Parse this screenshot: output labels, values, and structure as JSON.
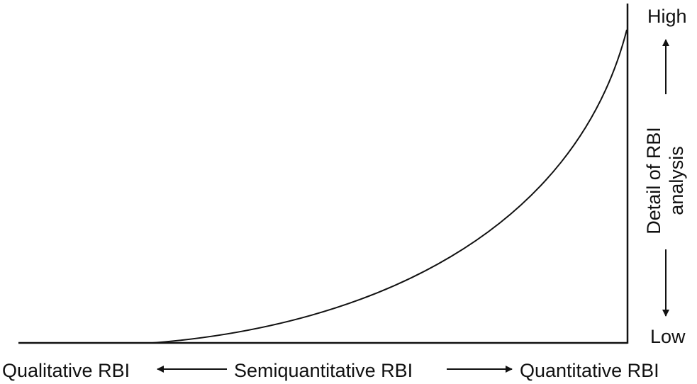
{
  "x_axis": {
    "left_label": "Qualitative RBI",
    "middle_label": "Semiquantitative RBI",
    "right_label": "Quantitative RBI"
  },
  "y_axis": {
    "high_label": "High",
    "low_label": "Low",
    "label_line1": "Detail of RBI",
    "label_line2": "analysis"
  },
  "colors": {
    "ink": "#111111",
    "background": "#ffffff"
  }
}
